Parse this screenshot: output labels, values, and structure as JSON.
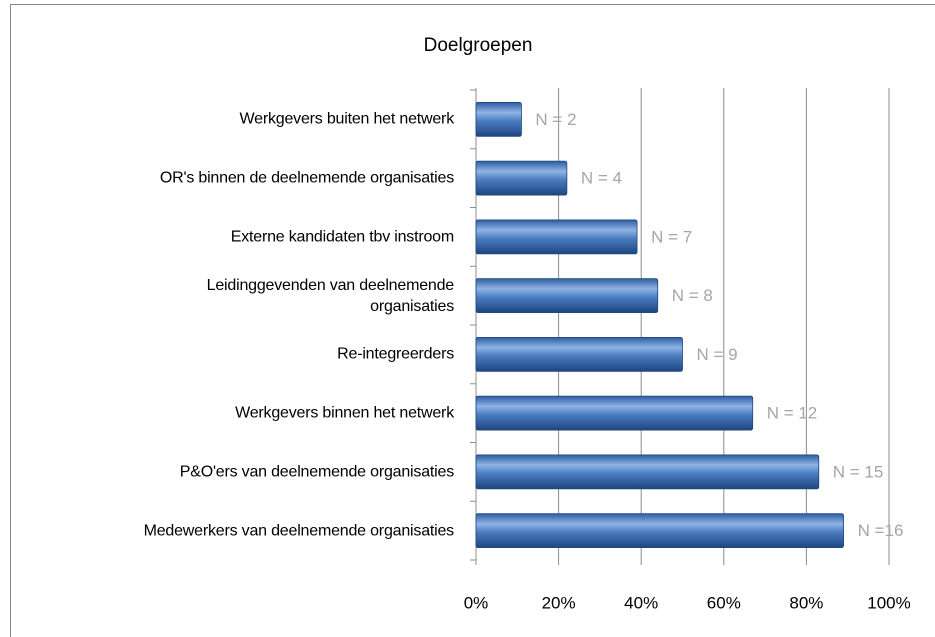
{
  "chart_data": {
    "type": "bar",
    "orientation": "horizontal",
    "title": "Doelgroepen",
    "categories": [
      "Werkgevers buiten het netwerk",
      "OR's binnen de deelnemende organisaties",
      "Externe kandidaten tbv instroom",
      "Leidinggevenden van deelnemende\norganisaties",
      "Re-integreerders",
      "Werkgevers binnen het netwerk",
      "P&O'ers van deelnemende organisaties",
      "Medewerkers van deelnemende organisaties"
    ],
    "values": [
      11,
      22,
      39,
      44,
      50,
      67,
      83,
      89
    ],
    "annotations": [
      "N = 2",
      "N = 4",
      "N = 7",
      "N = 8",
      "N = 9",
      "N = 12",
      "N = 15",
      "N =16"
    ],
    "color": "#4a7cc0",
    "xlim": [
      0,
      100
    ],
    "xticks": [
      {
        "value": 0,
        "label": "0%"
      },
      {
        "value": 20,
        "label": "20%"
      },
      {
        "value": 40,
        "label": "40%"
      },
      {
        "value": 60,
        "label": "60%"
      },
      {
        "value": 80,
        "label": "80%"
      },
      {
        "value": 100,
        "label": "100%"
      }
    ],
    "grid": true
  }
}
